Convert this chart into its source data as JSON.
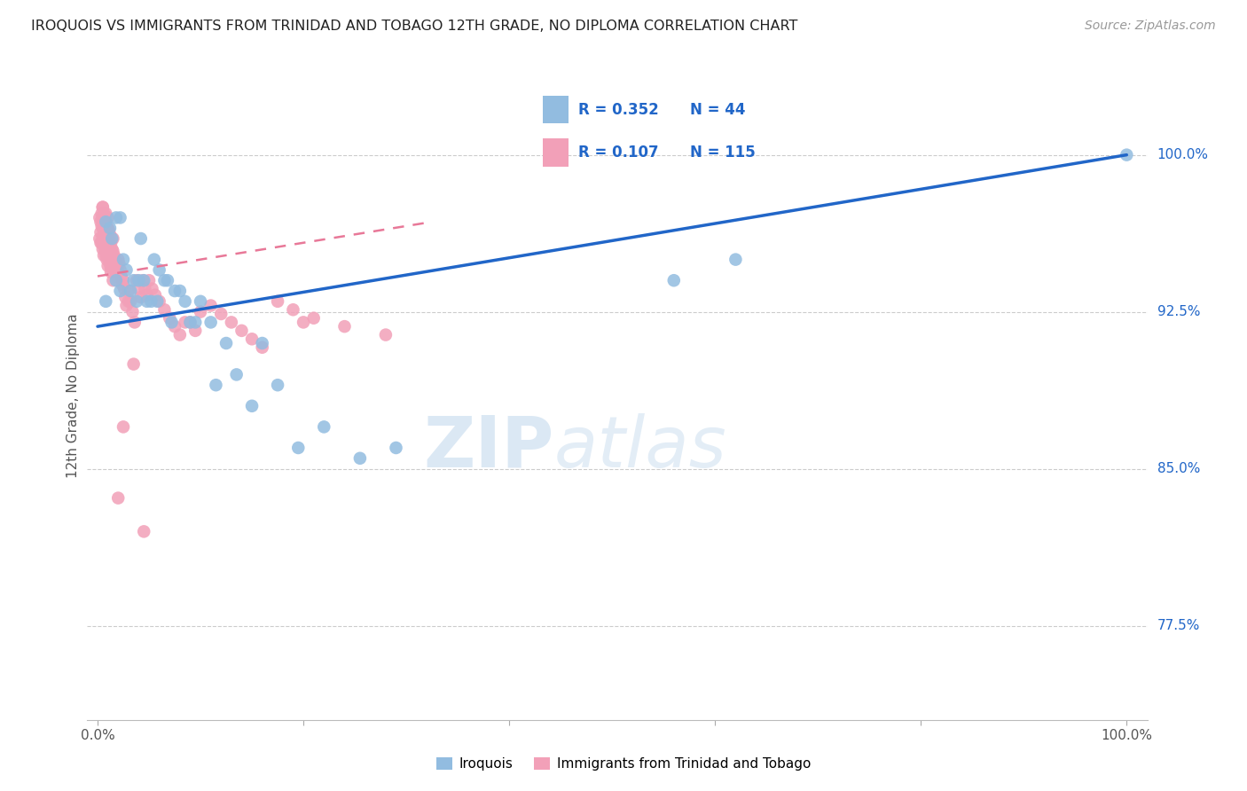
{
  "title": "IROQUOIS VS IMMIGRANTS FROM TRINIDAD AND TOBAGO 12TH GRADE, NO DIPLOMA CORRELATION CHART",
  "source": "Source: ZipAtlas.com",
  "ylabel": "12th Grade, No Diploma",
  "blue_color": "#92bce0",
  "pink_color": "#f2a0b8",
  "blue_line_color": "#2166c8",
  "pink_line_color": "#e87898",
  "legend_blue_r": "R = 0.352",
  "legend_blue_n": "N = 44",
  "legend_pink_r": "R = 0.107",
  "legend_pink_n": "N = 115",
  "watermark_zip": "ZIP",
  "watermark_atlas": "atlas",
  "ytick_positions": [
    0.775,
    0.85,
    0.925,
    1.0
  ],
  "ytick_labels": [
    "77.5%",
    "85.0%",
    "92.5%",
    "100.0%"
  ],
  "blue_scatter_x": [
    0.008,
    0.008,
    0.012,
    0.014,
    0.018,
    0.018,
    0.022,
    0.022,
    0.025,
    0.028,
    0.032,
    0.035,
    0.038,
    0.04,
    0.042,
    0.045,
    0.048,
    0.052,
    0.055,
    0.058,
    0.06,
    0.065,
    0.068,
    0.072,
    0.075,
    0.08,
    0.085,
    0.09,
    0.095,
    0.1,
    0.11,
    0.115,
    0.125,
    0.135,
    0.15,
    0.16,
    0.175,
    0.195,
    0.22,
    0.255,
    0.29,
    0.56,
    0.62,
    1.0
  ],
  "blue_scatter_y": [
    0.93,
    0.968,
    0.965,
    0.96,
    0.97,
    0.94,
    0.97,
    0.935,
    0.95,
    0.945,
    0.935,
    0.94,
    0.93,
    0.94,
    0.96,
    0.94,
    0.93,
    0.93,
    0.95,
    0.93,
    0.945,
    0.94,
    0.94,
    0.92,
    0.935,
    0.935,
    0.93,
    0.92,
    0.92,
    0.93,
    0.92,
    0.89,
    0.91,
    0.895,
    0.88,
    0.91,
    0.89,
    0.86,
    0.87,
    0.855,
    0.86,
    0.94,
    0.95,
    1.0
  ],
  "pink_scatter_x": [
    0.002,
    0.002,
    0.003,
    0.003,
    0.003,
    0.004,
    0.004,
    0.004,
    0.005,
    0.005,
    0.005,
    0.005,
    0.005,
    0.006,
    0.006,
    0.006,
    0.006,
    0.007,
    0.007,
    0.007,
    0.007,
    0.008,
    0.008,
    0.008,
    0.008,
    0.008,
    0.009,
    0.009,
    0.009,
    0.009,
    0.01,
    0.01,
    0.01,
    0.01,
    0.01,
    0.011,
    0.011,
    0.011,
    0.012,
    0.012,
    0.012,
    0.013,
    0.013,
    0.013,
    0.014,
    0.014,
    0.015,
    0.015,
    0.015,
    0.016,
    0.016,
    0.017,
    0.017,
    0.018,
    0.018,
    0.019,
    0.02,
    0.02,
    0.021,
    0.022,
    0.023,
    0.024,
    0.025,
    0.026,
    0.027,
    0.028,
    0.03,
    0.032,
    0.034,
    0.036,
    0.038,
    0.04,
    0.042,
    0.044,
    0.046,
    0.048,
    0.05,
    0.053,
    0.056,
    0.06,
    0.065,
    0.07,
    0.075,
    0.08,
    0.085,
    0.09,
    0.095,
    0.1,
    0.11,
    0.12,
    0.13,
    0.14,
    0.15,
    0.16,
    0.175,
    0.19,
    0.21,
    0.24,
    0.28,
    0.2,
    0.005,
    0.006,
    0.007,
    0.008,
    0.009,
    0.01,
    0.011,
    0.012,
    0.013,
    0.015,
    0.02,
    0.025,
    0.03,
    0.035,
    0.045
  ],
  "pink_scatter_y": [
    0.96,
    0.97,
    0.968,
    0.963,
    0.958,
    0.972,
    0.966,
    0.958,
    0.975,
    0.97,
    0.965,
    0.96,
    0.955,
    0.968,
    0.962,
    0.957,
    0.952,
    0.97,
    0.965,
    0.96,
    0.955,
    0.972,
    0.967,
    0.962,
    0.957,
    0.952,
    0.965,
    0.96,
    0.955,
    0.95,
    0.97,
    0.965,
    0.958,
    0.952,
    0.947,
    0.964,
    0.958,
    0.953,
    0.962,
    0.956,
    0.95,
    0.958,
    0.952,
    0.946,
    0.955,
    0.95,
    0.96,
    0.954,
    0.948,
    0.952,
    0.946,
    0.95,
    0.945,
    0.948,
    0.942,
    0.946,
    0.95,
    0.944,
    0.948,
    0.945,
    0.942,
    0.938,
    0.94,
    0.936,
    0.932,
    0.928,
    0.935,
    0.93,
    0.925,
    0.92,
    0.94,
    0.936,
    0.932,
    0.94,
    0.936,
    0.933,
    0.94,
    0.936,
    0.933,
    0.93,
    0.926,
    0.922,
    0.918,
    0.914,
    0.92,
    0.92,
    0.916,
    0.925,
    0.928,
    0.924,
    0.92,
    0.916,
    0.912,
    0.908,
    0.93,
    0.926,
    0.922,
    0.918,
    0.914,
    0.92,
    0.975,
    0.972,
    0.968,
    0.964,
    0.96,
    0.956,
    0.952,
    0.948,
    0.944,
    0.94,
    0.836,
    0.87,
    0.93,
    0.9,
    0.82
  ]
}
